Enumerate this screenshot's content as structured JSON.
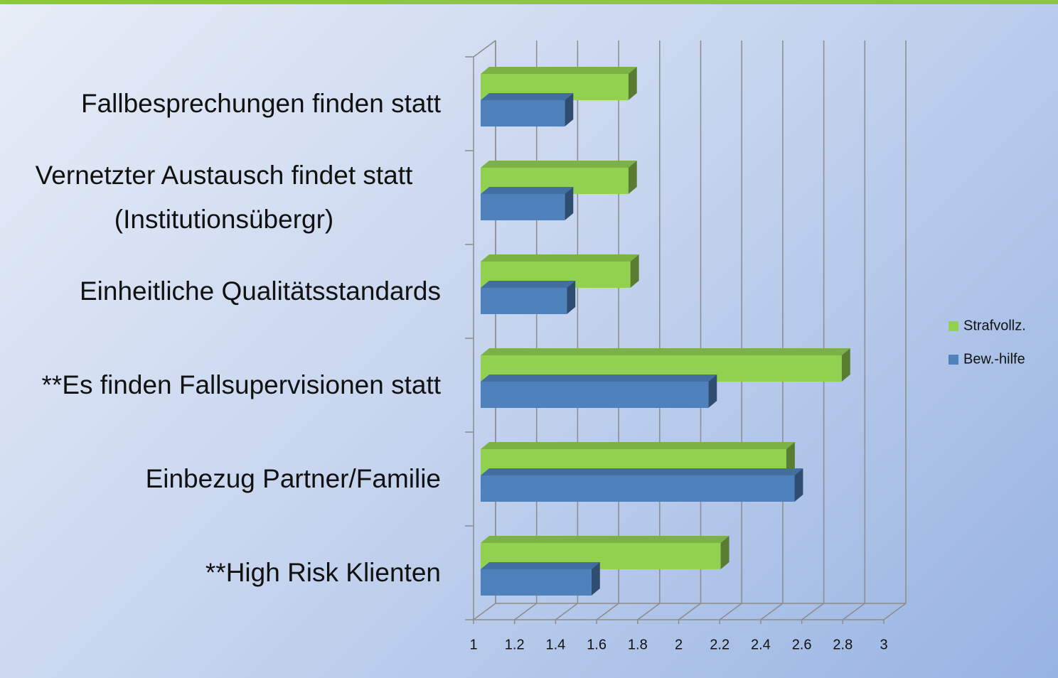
{
  "chart_data": {
    "type": "bar3d_horizontal",
    "categories": [
      "Fallbesprechungen finden statt",
      "Vernetzter Austausch findet statt (Institutionsübergr)",
      "Einheitliche Qualitätsstandards",
      "**Es finden Fallsupervisionen statt",
      "Einbezug Partner/Familie",
      "**High Risk Klienten"
    ],
    "series": [
      {
        "name": "Strafvollz.",
        "color": "#92d050",
        "values": [
          1.72,
          1.72,
          1.73,
          2.76,
          2.49,
          2.17
        ]
      },
      {
        "name": "Bew.-hilfe",
        "color": "#4f81bd",
        "values": [
          1.41,
          1.41,
          1.42,
          2.11,
          2.53,
          1.54
        ]
      }
    ],
    "xlim": [
      1,
      3
    ],
    "xticks": [
      1,
      1.2,
      1.4,
      1.6,
      1.8,
      2,
      2.2,
      2.4,
      2.6,
      2.8,
      3
    ],
    "grid": true,
    "legend": "right"
  }
}
